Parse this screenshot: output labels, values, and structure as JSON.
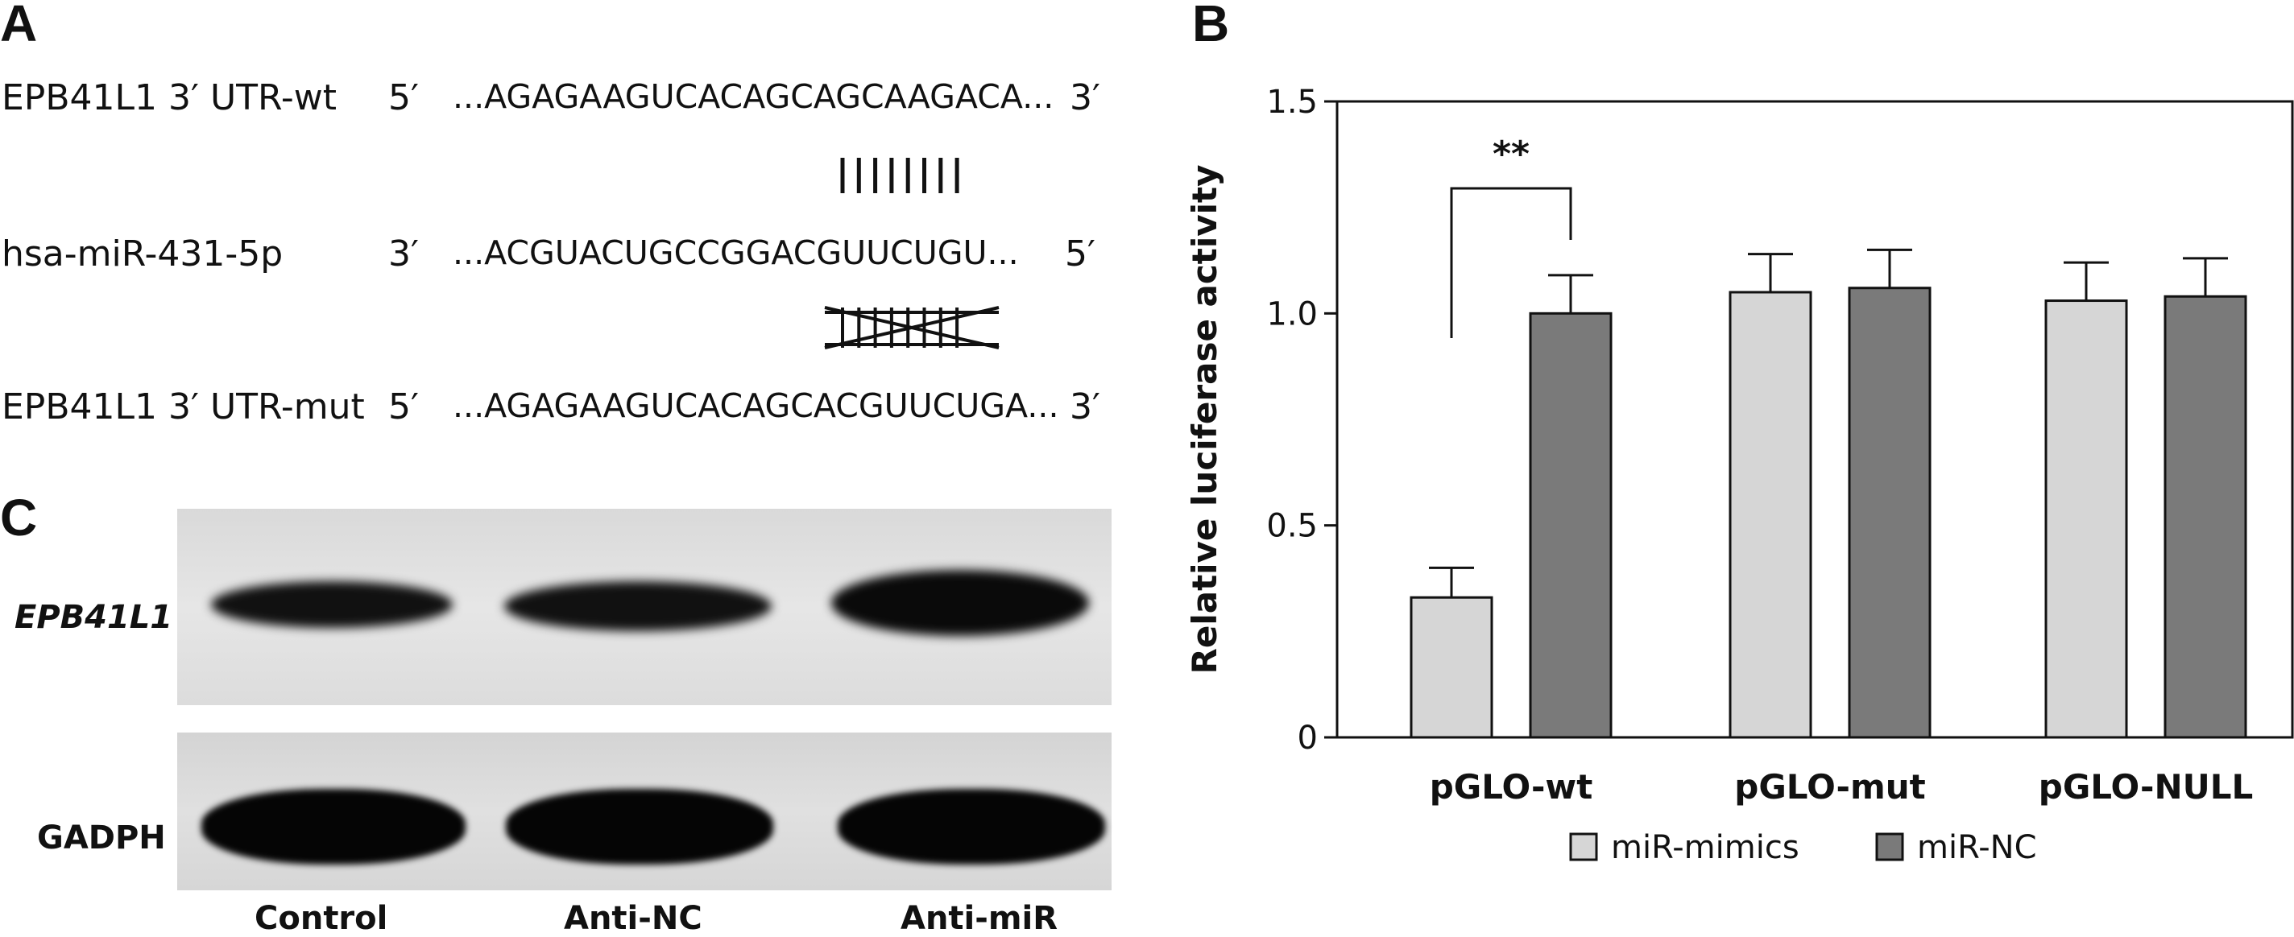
{
  "panels": {
    "a": "A",
    "b": "B",
    "c": "C"
  },
  "panel_a": {
    "wt": {
      "label": "EPB41L1 3′ UTR-wt",
      "end5": "5′",
      "seq": "...AGAGAAGUCACAGCAGCAAGACA...",
      "end3": "3′"
    },
    "mir": {
      "label": "hsa-miR-431-5p",
      "end3": "3′",
      "seq": "...ACGUACUGCCGGACGUUCUGU...",
      "end5": "5′"
    },
    "mut": {
      "label": "EPB41L1 3′ UTR-mut",
      "end5": "5′",
      "seq": "...AGAGAAGUCACAGCACGUUCUGA...",
      "end3": "3′"
    },
    "pairing_marks": 8
  },
  "panel_c": {
    "rows": [
      "EPB41L1",
      "GADPH"
    ],
    "lanes": [
      "Control",
      "Anti-NC",
      "Anti-miR"
    ]
  },
  "chart_data": {
    "type": "bar",
    "categories": [
      "pGLO-wt",
      "pGLO-mut",
      "pGLO-NULL"
    ],
    "series": [
      {
        "name": "miR-mimics",
        "values": [
          0.33,
          1.05,
          1.03
        ],
        "errors": [
          0.07,
          0.09,
          0.09
        ],
        "color": "#d6d6d6"
      },
      {
        "name": "miR-NC",
        "values": [
          1.0,
          1.06,
          1.04
        ],
        "errors": [
          0.09,
          0.09,
          0.09
        ],
        "color": "#7a7a7a"
      }
    ],
    "ylabel": "Relative luciferase activity",
    "ylim": [
      0,
      1.5
    ],
    "yticks": [
      0,
      0.5,
      1.0,
      1.5
    ],
    "ytick_labels": [
      "0",
      "0.5",
      "1.0",
      "1.5"
    ],
    "significance": {
      "category": "pGLO-wt",
      "label": "**"
    },
    "legend_position": "bottom",
    "grid": false
  }
}
